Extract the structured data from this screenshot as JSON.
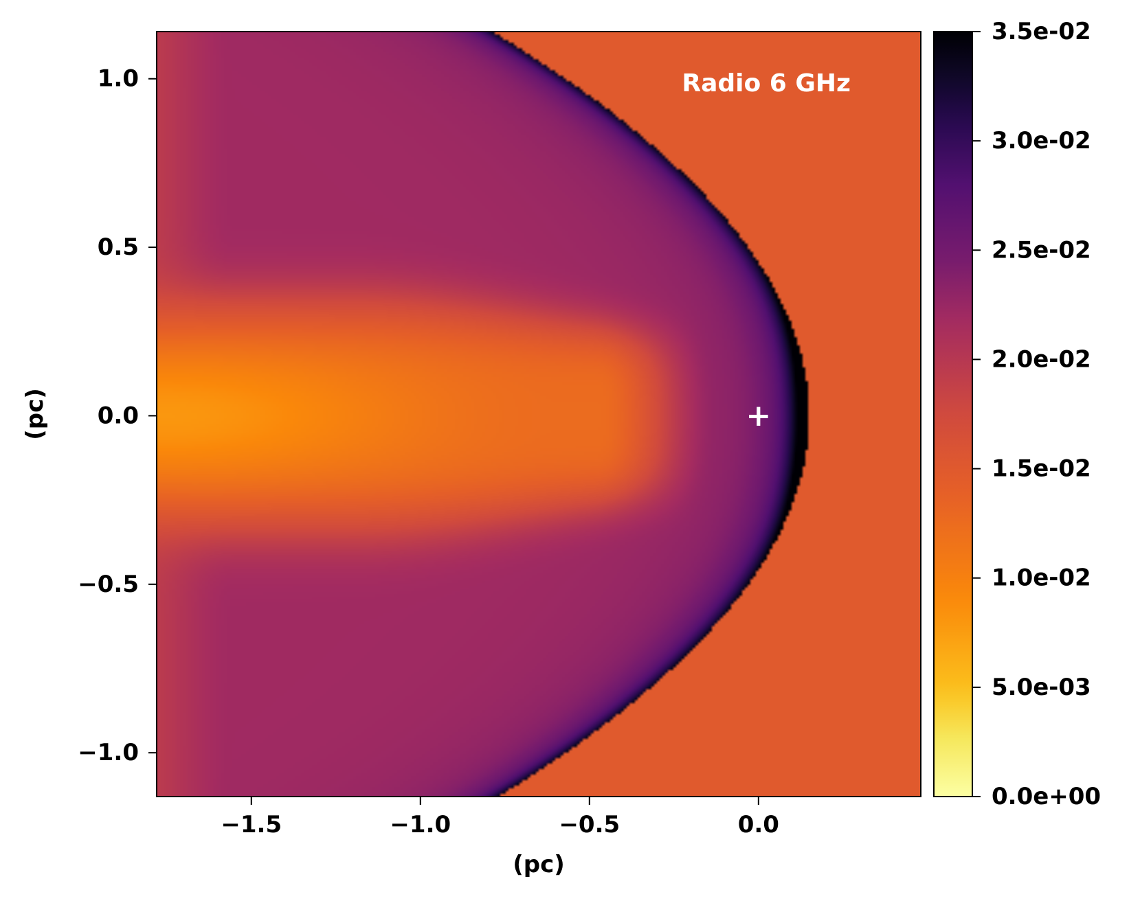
{
  "chart_data": {
    "type": "heatmap",
    "title": "",
    "annotation": "Radio 6 GHz",
    "xlabel": "(pc)",
    "ylabel": "(pc)",
    "xlim": [
      -1.78,
      0.48
    ],
    "ylim": [
      -1.13,
      1.14
    ],
    "xticks": [
      -1.5,
      -1.0,
      -0.5,
      0.0
    ],
    "xtick_labels": [
      "−1.5",
      "−1.0",
      "−0.5",
      "0.0"
    ],
    "yticks": [
      -1.0,
      -0.5,
      0.0,
      0.5,
      1.0
    ],
    "ytick_labels": [
      "−1.0",
      "−0.5",
      "0.0",
      "0.5",
      "1.0"
    ],
    "colormap": "inferno_r",
    "colorbar": {
      "range": [
        0.0,
        0.035
      ],
      "ticks": [
        0.0,
        0.005,
        0.01,
        0.015,
        0.02,
        0.025,
        0.03,
        0.035
      ],
      "tick_labels": [
        "0.0e+00",
        "5.0e-03",
        "1.0e-02",
        "1.5e-02",
        "2.0e-02",
        "2.5e-02",
        "3.0e-02",
        "3.5e-02"
      ]
    },
    "background_value": 0.0148,
    "features": {
      "bow_shock_apex_x": 0.15,
      "peak_value": 0.035,
      "tail_min_value": 0.007,
      "wing_value": 0.022
    },
    "source_marker": {
      "x": 0.0,
      "y": 0.0,
      "symbol": "+"
    }
  }
}
